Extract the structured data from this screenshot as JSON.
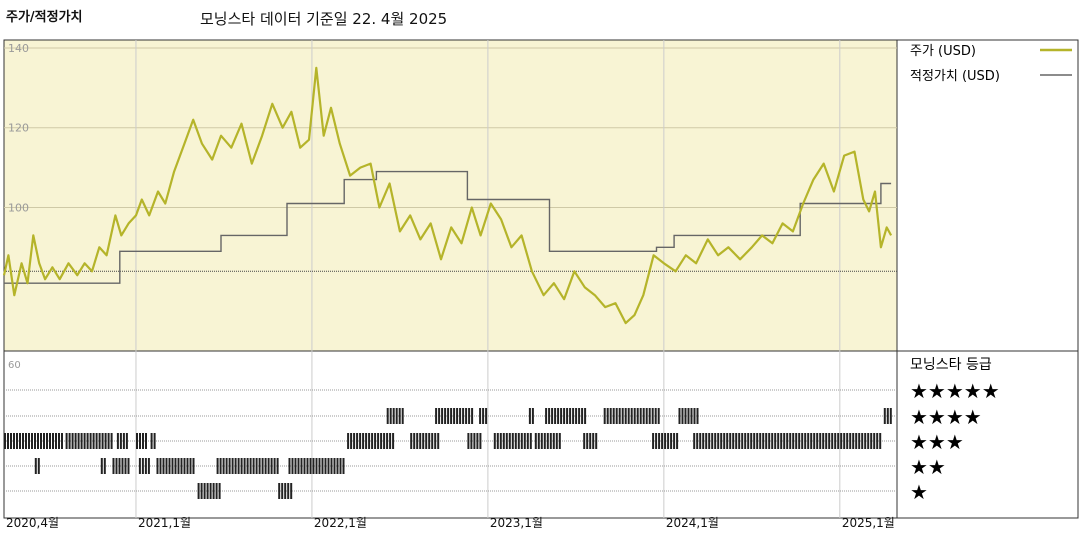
{
  "header": {
    "left_title": "주가/적정가치",
    "main_title": "모닝스타 데이터 기준일 22. 4월 2025"
  },
  "colors": {
    "price": "#b5b42a",
    "fair_value": "#666666",
    "panel_bg": "#f8f4d4",
    "rating_bar": "#222222"
  },
  "legend": {
    "price_label": "주가 (USD)",
    "fair_label": "적정가치 (USD)"
  },
  "rating_panel": {
    "title": "모닝스타 등급",
    "axis_top": "60",
    "stars": [
      "★★★★★",
      "★★★★",
      "★★★",
      "★★",
      "★"
    ]
  },
  "chart_data": {
    "type": "line",
    "y_ticks": [
      "140",
      "120",
      "100"
    ],
    "ylim": [
      64,
      142
    ],
    "x_ticks": [
      "2020,4월",
      "2021,1월",
      "2022,1월",
      "2023,1월",
      "2024,1월",
      "2025,1월"
    ],
    "x_tick_months": [
      0,
      9,
      21,
      33,
      45,
      57
    ],
    "reference_line": 84,
    "price_series_name": "주가 (USD)",
    "price": [
      [
        0,
        83
      ],
      [
        0.3,
        88
      ],
      [
        0.7,
        78
      ],
      [
        1.2,
        86
      ],
      [
        1.6,
        81
      ],
      [
        2.0,
        93
      ],
      [
        2.4,
        86
      ],
      [
        2.8,
        82
      ],
      [
        3.3,
        85
      ],
      [
        3.8,
        82
      ],
      [
        4.4,
        86
      ],
      [
        5.0,
        83
      ],
      [
        5.5,
        86
      ],
      [
        6.0,
        84
      ],
      [
        6.5,
        90
      ],
      [
        7.0,
        88
      ],
      [
        7.6,
        98
      ],
      [
        8.0,
        93
      ],
      [
        8.5,
        96
      ],
      [
        9.0,
        98
      ],
      [
        9.4,
        102
      ],
      [
        9.9,
        98
      ],
      [
        10.5,
        104
      ],
      [
        11.0,
        101
      ],
      [
        11.6,
        109
      ],
      [
        12.3,
        116
      ],
      [
        12.9,
        122
      ],
      [
        13.5,
        116
      ],
      [
        14.2,
        112
      ],
      [
        14.8,
        118
      ],
      [
        15.5,
        115
      ],
      [
        16.2,
        121
      ],
      [
        16.9,
        111
      ],
      [
        17.6,
        118
      ],
      [
        18.3,
        126
      ],
      [
        19.0,
        120
      ],
      [
        19.6,
        124
      ],
      [
        20.2,
        115
      ],
      [
        20.8,
        117
      ],
      [
        21.3,
        135
      ],
      [
        21.8,
        118
      ],
      [
        22.3,
        125
      ],
      [
        22.9,
        116
      ],
      [
        23.6,
        108
      ],
      [
        24.3,
        110
      ],
      [
        25.0,
        111
      ],
      [
        25.6,
        100
      ],
      [
        26.3,
        106
      ],
      [
        27.0,
        94
      ],
      [
        27.7,
        98
      ],
      [
        28.4,
        92
      ],
      [
        29.1,
        96
      ],
      [
        29.8,
        87
      ],
      [
        30.5,
        95
      ],
      [
        31.2,
        91
      ],
      [
        31.9,
        100
      ],
      [
        32.5,
        93
      ],
      [
        33.2,
        101
      ],
      [
        33.9,
        97
      ],
      [
        34.6,
        90
      ],
      [
        35.3,
        93
      ],
      [
        36.0,
        84
      ],
      [
        36.8,
        78
      ],
      [
        37.5,
        81
      ],
      [
        38.2,
        77
      ],
      [
        38.9,
        84
      ],
      [
        39.6,
        80
      ],
      [
        40.3,
        78
      ],
      [
        41.0,
        75
      ],
      [
        41.7,
        76
      ],
      [
        42.4,
        71
      ],
      [
        43.0,
        73
      ],
      [
        43.6,
        78
      ],
      [
        44.3,
        88
      ],
      [
        45.0,
        86
      ],
      [
        45.8,
        84
      ],
      [
        46.5,
        88
      ],
      [
        47.2,
        86
      ],
      [
        48.0,
        92
      ],
      [
        48.7,
        88
      ],
      [
        49.4,
        90
      ],
      [
        50.2,
        87
      ],
      [
        51.0,
        90
      ],
      [
        51.7,
        93
      ],
      [
        52.4,
        91
      ],
      [
        53.1,
        96
      ],
      [
        53.8,
        94
      ],
      [
        54.5,
        101
      ],
      [
        55.2,
        107
      ],
      [
        55.9,
        111
      ],
      [
        56.6,
        104
      ],
      [
        57.3,
        113
      ],
      [
        58.0,
        114
      ],
      [
        58.6,
        102
      ],
      [
        59.0,
        99
      ],
      [
        59.4,
        104
      ],
      [
        59.8,
        90
      ],
      [
        60.2,
        95
      ],
      [
        60.5,
        93
      ]
    ],
    "fair_value_series_name": "적정가치 (USD)",
    "fair_value": [
      [
        0,
        81
      ],
      [
        7.9,
        81
      ],
      [
        7.9,
        89
      ],
      [
        14.8,
        89
      ],
      [
        14.8,
        93
      ],
      [
        19.3,
        93
      ],
      [
        19.3,
        101
      ],
      [
        23.2,
        101
      ],
      [
        23.2,
        107
      ],
      [
        25.4,
        107
      ],
      [
        25.4,
        109
      ],
      [
        31.6,
        109
      ],
      [
        31.6,
        102
      ],
      [
        37.2,
        102
      ],
      [
        37.2,
        89
      ],
      [
        44.5,
        89
      ],
      [
        44.5,
        90
      ],
      [
        45.7,
        90
      ],
      [
        45.7,
        93
      ],
      [
        54.3,
        93
      ],
      [
        54.3,
        101
      ],
      [
        59.8,
        101
      ],
      [
        59.8,
        106
      ],
      [
        60.5,
        106
      ]
    ],
    "rating_segments": {
      "5": [],
      "4": [
        [
          26.1,
          27.3
        ],
        [
          29.4,
          31.9
        ],
        [
          32.4,
          32.9
        ],
        [
          35.8,
          36.2
        ],
        [
          36.9,
          39.7
        ],
        [
          40.9,
          44.6
        ],
        [
          46.0,
          47.3
        ],
        [
          60.0,
          60.5
        ]
      ],
      "3": [
        [
          0,
          3.9
        ],
        [
          4.2,
          7.4
        ],
        [
          7.7,
          8.4
        ],
        [
          9.0,
          9.7
        ],
        [
          10.0,
          10.3
        ],
        [
          23.4,
          26.6
        ],
        [
          27.7,
          29.6
        ],
        [
          31.6,
          32.6
        ],
        [
          33.4,
          35.9
        ],
        [
          36.2,
          38.0
        ],
        [
          39.5,
          40.5
        ],
        [
          44.2,
          46.0
        ],
        [
          47.0,
          59.7
        ]
      ],
      "2": [
        [
          2.1,
          2.4
        ],
        [
          6.6,
          6.9
        ],
        [
          7.4,
          8.6
        ],
        [
          9.2,
          10.0
        ],
        [
          10.4,
          13.0
        ],
        [
          14.5,
          18.6
        ],
        [
          19.4,
          23.2
        ]
      ],
      "1": [
        [
          13.2,
          14.7
        ],
        [
          18.7,
          19.6
        ]
      ]
    }
  }
}
